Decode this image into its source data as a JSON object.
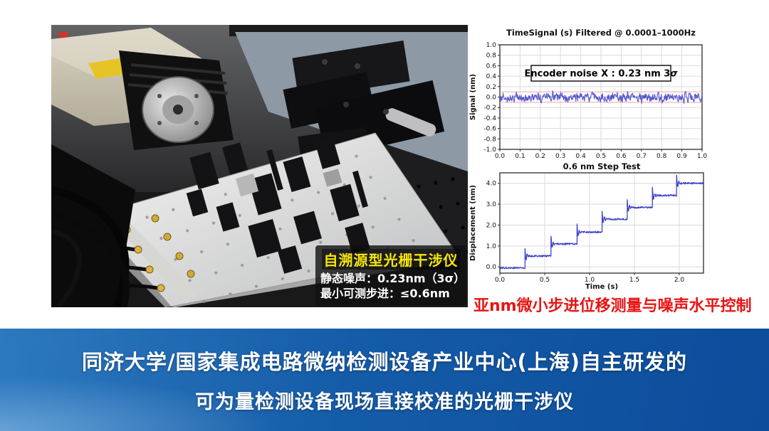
{
  "photo": {
    "label": {
      "title": "自溯源型光栅干涉仪",
      "line1": "静态噪声：0.23nm（3σ）",
      "line2": "最小可测步进：≤0.6nm",
      "title_color": "#f6e60a",
      "text_color": "#ffffff"
    }
  },
  "charts": {
    "caption": "亚nm微小步进位移测量与噪声水平控制",
    "caption_color": "#e81414"
  },
  "chart_data": [
    {
      "type": "line",
      "title": "TimeSignal (s) Filtered @ 0.0001–1000Hz",
      "xlabel": "",
      "ylabel": "Signal (nm)",
      "xlim": [
        0.0,
        1.0
      ],
      "ylim": [
        -1.0,
        1.0
      ],
      "xticks": [
        0.0,
        0.1,
        0.2,
        0.3,
        0.4,
        0.5,
        0.6,
        0.7,
        0.8,
        0.9,
        1.0
      ],
      "xtick_labels": [
        "0.0",
        "0.1",
        "0.2",
        "0.3",
        "0.4",
        "0.5",
        "0.6",
        "0.7",
        "0.8",
        "0.9",
        "1.0"
      ],
      "yticks": [
        1.0,
        0.8,
        0.6,
        0.4,
        0.2,
        0.0,
        -0.2,
        -0.4,
        -0.6,
        -0.8,
        -1.0
      ],
      "ytick_labels": [
        "1.0",
        "0.8",
        "0.6",
        "0.4",
        "0.2",
        "0.0",
        "-0.2",
        "-0.4",
        "-0.6",
        "-0.8",
        "-1.0"
      ],
      "grid": true,
      "annotation": "Encoder noise X : 0.23 nm 3σ",
      "series": [
        {
          "name": "encoder-noise-x",
          "baseline_nm": 0.0,
          "typical_amplitude_nm": 0.05,
          "peak_amplitude_nm": 0.12,
          "points": 560
        }
      ],
      "band_lines_nm": [
        0.1,
        -0.1
      ],
      "noise_3sigma_nm": 0.23,
      "line_color": "#4040c8",
      "band_color": "#eda9a9"
    },
    {
      "type": "line",
      "title": "0.6 nm Step Test",
      "xlabel": "Time (s)",
      "ylabel": "Displacement (nm)",
      "xlim": [
        0.0,
        2.27
      ],
      "ylim": [
        -0.3,
        4.5
      ],
      "xticks": [
        0.0,
        0.5,
        1.0,
        1.5,
        2.0
      ],
      "xtick_labels": [
        "0.0",
        "0.5",
        "1.0",
        "1.5",
        "2.0"
      ],
      "yticks": [
        0.0,
        1.0,
        2.0,
        3.0,
        4.0
      ],
      "ytick_labels": [
        "0.0",
        "1.0",
        "2.0",
        "3.0",
        "4.0"
      ],
      "grid": true,
      "step_size_nm": 0.6,
      "steps": [
        {
          "t0": 0.0,
          "t1": 0.28,
          "level": -0.05
        },
        {
          "t0": 0.28,
          "t1": 0.57,
          "level": 0.52
        },
        {
          "t0": 0.57,
          "t1": 0.86,
          "level": 1.1
        },
        {
          "t0": 0.86,
          "t1": 1.14,
          "level": 1.66
        },
        {
          "t0": 1.14,
          "t1": 1.42,
          "level": 2.28
        },
        {
          "t0": 1.42,
          "t1": 1.7,
          "level": 2.84
        },
        {
          "t0": 1.7,
          "t1": 1.97,
          "level": 3.42
        },
        {
          "t0": 1.97,
          "t1": 2.27,
          "level": 4.0
        }
      ],
      "overshoot_nm": 0.36,
      "plateau_noise_nm": 0.04,
      "line_color": "#2228c4"
    }
  ],
  "banner": {
    "line1": "同济大学/国家集成电路微纳检测设备产业中心(上海)自主研发的",
    "line2": "可为量检测设备现场直接校准的光栅干涉仪"
  }
}
